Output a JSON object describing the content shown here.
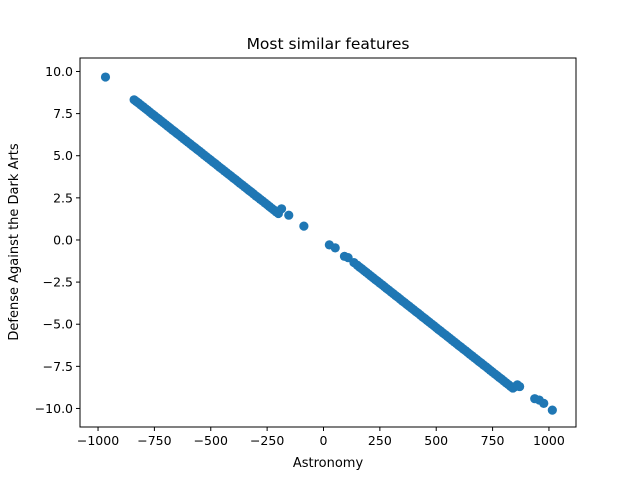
{
  "chart_data": {
    "type": "scatter",
    "title": "Most similar features",
    "xlabel": "Astronomy",
    "ylabel": "Defense Against the Dark Arts",
    "xlim": [
      -1080,
      1120
    ],
    "ylim": [
      -11.1,
      10.8
    ],
    "xticks": [
      -1000,
      -750,
      -500,
      -250,
      0,
      250,
      500,
      750,
      1000
    ],
    "xtick_labels": [
      "−1000",
      "−750",
      "−500",
      "−250",
      "0",
      "250",
      "500",
      "750",
      "1000"
    ],
    "yticks": [
      -10.0,
      -7.5,
      -5.0,
      -2.5,
      0.0,
      2.5,
      5.0,
      7.5,
      10.0
    ],
    "ytick_labels": [
      "−10.0",
      "−7.5",
      "−5.0",
      "−2.5",
      "0.0",
      "2.5",
      "5.0",
      "7.5",
      "10.0"
    ],
    "grid": false,
    "color": "#1f77b4",
    "series": [
      {
        "x": [
          -967,
          -840,
          -830,
          -820,
          -810,
          -800,
          -790,
          -780,
          -770,
          -760,
          -750,
          -740,
          -730,
          -720,
          -710,
          -700,
          -690,
          -680,
          -670,
          -660,
          -650,
          -640,
          -630,
          -620,
          -610,
          -600,
          -590,
          -580,
          -570,
          -560,
          -550,
          -540,
          -530,
          -520,
          -510,
          -500,
          -490,
          -480,
          -470,
          -460,
          -450,
          -440,
          -430,
          -420,
          -410,
          -400,
          -390,
          -380,
          -370,
          -360,
          -350,
          -340,
          -330,
          -320,
          -310,
          -300,
          -290,
          -280,
          -270,
          -260,
          -250,
          -240,
          -230,
          -220,
          -210,
          -200,
          -186,
          -154,
          -87,
          26,
          52,
          93,
          109,
          135,
          150,
          160,
          170,
          180,
          190,
          200,
          210,
          220,
          230,
          240,
          250,
          260,
          270,
          280,
          290,
          300,
          310,
          320,
          330,
          340,
          350,
          360,
          370,
          380,
          390,
          400,
          410,
          420,
          430,
          440,
          450,
          460,
          470,
          480,
          490,
          500,
          510,
          520,
          530,
          540,
          550,
          560,
          570,
          580,
          590,
          600,
          610,
          620,
          630,
          640,
          650,
          660,
          670,
          680,
          690,
          700,
          710,
          720,
          730,
          740,
          750,
          760,
          770,
          780,
          790,
          800,
          810,
          820,
          830,
          840,
          850,
          860,
          870,
          937,
          957,
          977,
          1015
        ],
        "y": [
          9.67,
          8.32,
          8.22,
          8.12,
          8.01,
          7.91,
          7.8,
          7.7,
          7.59,
          7.48,
          7.38,
          7.27,
          7.17,
          7.06,
          6.96,
          6.85,
          6.74,
          6.64,
          6.53,
          6.43,
          6.32,
          6.22,
          6.11,
          6.0,
          5.9,
          5.79,
          5.69,
          5.58,
          5.48,
          5.37,
          5.27,
          5.16,
          5.05,
          4.95,
          4.84,
          4.74,
          4.63,
          4.53,
          4.42,
          4.31,
          4.21,
          4.1,
          4.0,
          3.89,
          3.79,
          3.68,
          3.58,
          3.47,
          3.36,
          3.26,
          3.15,
          3.05,
          2.94,
          2.84,
          2.73,
          2.62,
          2.52,
          2.41,
          2.31,
          2.2,
          2.1,
          1.99,
          1.88,
          1.78,
          1.67,
          1.57,
          1.85,
          1.47,
          0.82,
          -0.29,
          -0.47,
          -0.97,
          -1.05,
          -1.34,
          -1.5,
          -1.61,
          -1.71,
          -1.82,
          -1.92,
          -2.03,
          -2.14,
          -2.24,
          -2.35,
          -2.45,
          -2.56,
          -2.66,
          -2.77,
          -2.88,
          -2.98,
          -3.09,
          -3.19,
          -3.3,
          -3.4,
          -3.51,
          -3.62,
          -3.72,
          -3.83,
          -3.93,
          -4.04,
          -4.14,
          -4.25,
          -4.35,
          -4.46,
          -4.57,
          -4.67,
          -4.78,
          -4.88,
          -4.99,
          -5.09,
          -5.2,
          -5.31,
          -5.41,
          -5.52,
          -5.62,
          -5.73,
          -5.83,
          -5.94,
          -6.05,
          -6.15,
          -6.26,
          -6.36,
          -6.47,
          -6.57,
          -6.68,
          -6.79,
          -6.89,
          -7.0,
          -7.1,
          -7.21,
          -7.31,
          -7.42,
          -7.52,
          -7.63,
          -7.74,
          -7.84,
          -7.95,
          -8.05,
          -8.16,
          -8.26,
          -8.37,
          -8.48,
          -8.58,
          -8.69,
          -8.79,
          -8.7,
          -8.6,
          -8.7,
          -9.42,
          -9.5,
          -9.7,
          -10.1
        ]
      }
    ]
  }
}
